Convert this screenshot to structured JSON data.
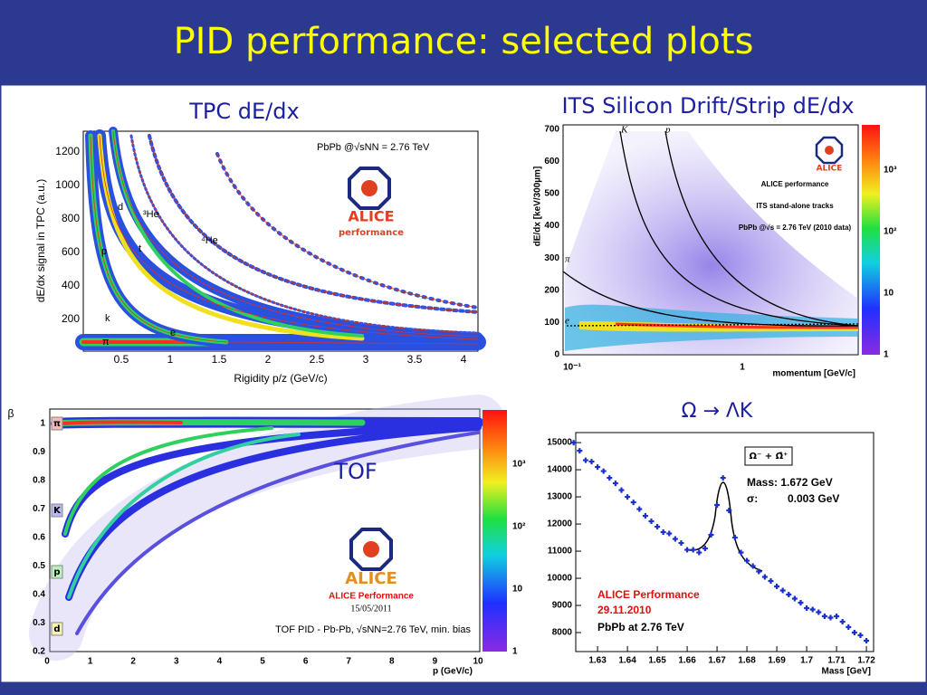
{
  "title": "PID performance: selected plots",
  "panels": {
    "tpc": {
      "heading": "TPC dE/dx",
      "y_label": "dE/dx signal in TPC (a.u.)",
      "x_label": "Rigidity p/z (GeV/c)",
      "y_ticks": [
        "200",
        "400",
        "600",
        "800",
        "1000",
        "1200"
      ],
      "x_ticks": [
        "0.5",
        "1",
        "1.5",
        "2",
        "2.5",
        "3",
        "3.5",
        "4"
      ],
      "system": "PbPb @√sNN = 2.76 TeV",
      "logo": "ALICE",
      "logo_sub": "performance",
      "particles": [
        "d",
        "³He",
        "p",
        "t",
        "⁴He",
        "k",
        "e",
        "π"
      ]
    },
    "its": {
      "heading": "ITS Silicon Drift/Strip dE/dx",
      "y_label": "dE/dx [keV/300µm]",
      "x_label": "momentum [GeV/c]",
      "y_ticks": [
        "0",
        "100",
        "200",
        "300",
        "400",
        "500",
        "600",
        "700"
      ],
      "x_ticks": [
        "10⁻¹",
        "1"
      ],
      "color_ticks": [
        "1",
        "10",
        "10²",
        "10³"
      ],
      "notes": [
        "ALICE performance",
        "ITS stand-alone tracks",
        "PbPb @√s = 2.76 TeV (2010 data)"
      ],
      "logo": "ALICE",
      "particles": [
        "K",
        "p",
        "π",
        "e"
      ]
    },
    "tof": {
      "heading": "TOF",
      "y_label": "β",
      "x_label": "p (GeV/c)",
      "y_ticks": [
        "0.2",
        "0.3",
        "0.4",
        "0.5",
        "0.6",
        "0.7",
        "0.8",
        "0.9",
        "1"
      ],
      "x_ticks": [
        "0",
        "1",
        "2",
        "3",
        "4",
        "5",
        "6",
        "7",
        "8",
        "9",
        "10"
      ],
      "color_ticks": [
        "1",
        "10",
        "10²",
        "10³"
      ],
      "particles": [
        "π",
        "K",
        "p",
        "d"
      ],
      "logo": "ALICE",
      "performance": "ALICE Performance",
      "date": "15/05/2011",
      "caption": "TOF PID - Pb-Pb, √sNN=2.76 TeV, min. bias"
    },
    "omega": {
      "heading": "Ω → ΛK"
    }
  },
  "chart_data": {
    "type": "scatter",
    "x_label": "Mass [GeV]",
    "legend": "Ω⁻ + Ω̄⁺",
    "mass": "Mass: 1.672 GeV",
    "sigma_label": "σ:",
    "sigma": "0.003 GeV",
    "performance": "ALICE Performance",
    "date": "29.11.2010",
    "system": "PbPb at 2.76 TeV",
    "color": "#1a2fd0",
    "x": [
      1.622,
      1.624,
      1.626,
      1.628,
      1.63,
      1.632,
      1.634,
      1.636,
      1.638,
      1.64,
      1.642,
      1.644,
      1.646,
      1.648,
      1.65,
      1.652,
      1.654,
      1.656,
      1.658,
      1.66,
      1.662,
      1.664,
      1.666,
      1.668,
      1.67,
      1.672,
      1.674,
      1.676,
      1.678,
      1.68,
      1.682,
      1.684,
      1.686,
      1.688,
      1.69,
      1.692,
      1.694,
      1.696,
      1.698,
      1.7,
      1.702,
      1.704,
      1.706,
      1.708,
      1.71,
      1.712,
      1.714,
      1.716,
      1.718,
      1.72
    ],
    "values": [
      15000,
      14700,
      14350,
      14300,
      14100,
      13950,
      13700,
      13500,
      13250,
      13000,
      12800,
      12550,
      12300,
      12100,
      11900,
      11700,
      11650,
      11450,
      11300,
      11050,
      11050,
      10950,
      11100,
      11600,
      12700,
      13700,
      12500,
      11500,
      10950,
      10650,
      10450,
      10250,
      10050,
      9900,
      9700,
      9550,
      9400,
      9250,
      9100,
      8900,
      8850,
      8750,
      8600,
      8550,
      8600,
      8400,
      8200,
      8000,
      7900,
      7700
    ],
    "xlim": [
      1.6227,
      1.7224
    ],
    "ylim": [
      7300,
      15370
    ],
    "xticks": [
      1.63,
      1.64,
      1.65,
      1.66,
      1.67,
      1.68,
      1.69,
      1.7,
      1.71,
      1.72
    ],
    "yticks": [
      8000,
      9000,
      10000,
      11000,
      12000,
      13000,
      14000,
      15000
    ]
  }
}
